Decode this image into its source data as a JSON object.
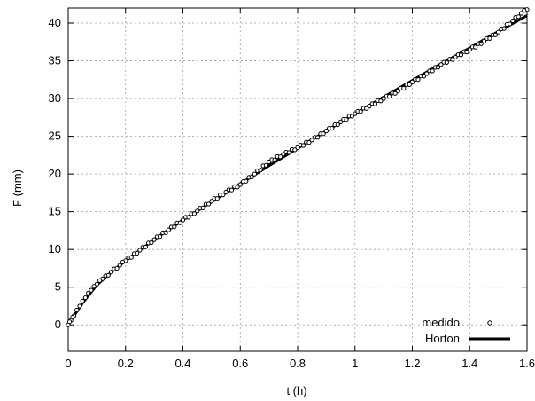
{
  "chart_data": {
    "type": "line",
    "title": "",
    "xlabel": "t (h)",
    "ylabel": "F (mm)",
    "xlim": [
      0,
      1.6
    ],
    "ylim": [
      -3.5,
      42
    ],
    "xticks": [
      0,
      0.2,
      0.4,
      0.6,
      0.8,
      1,
      1.2,
      1.4,
      1.6
    ],
    "xtick_labels": [
      "0",
      "0.2",
      "0.4",
      "0.6",
      "0.8",
      "1",
      "1.2",
      "1.4",
      "1.6"
    ],
    "yticks": [
      0,
      5,
      10,
      15,
      20,
      25,
      30,
      35,
      40
    ],
    "ytick_labels": [
      "0",
      "5",
      "10",
      "15",
      "20",
      "25",
      "30",
      "35",
      "40"
    ],
    "grid": true,
    "legend_position": "bottom-right",
    "series": [
      {
        "name": "medido",
        "style": "markers",
        "marker": "open-circle",
        "color": "#000000",
        "x": [
          0,
          0.01,
          0.02,
          0.04,
          0.06,
          0.08,
          0.1,
          0.12,
          0.15,
          0.18,
          0.2,
          0.25,
          0.3,
          0.35,
          0.4,
          0.45,
          0.5,
          0.55,
          0.6,
          0.65,
          0.7,
          0.75,
          0.8,
          0.85,
          0.9,
          0.95,
          1.0,
          1.05,
          1.1,
          1.15,
          1.2,
          1.25,
          1.3,
          1.35,
          1.4,
          1.45,
          1.5,
          1.55,
          1.58,
          1.6
        ],
        "y": [
          0,
          0.6,
          1.2,
          2.5,
          3.6,
          4.6,
          5.4,
          6.1,
          7.0,
          7.9,
          8.5,
          9.9,
          11.3,
          12.6,
          13.9,
          15.1,
          16.4,
          17.6,
          18.6,
          20.0,
          21.6,
          22.6,
          23.5,
          24.5,
          25.7,
          26.9,
          28.0,
          29.0,
          30.0,
          31.0,
          32.2,
          33.3,
          34.5,
          35.5,
          36.5,
          37.6,
          38.8,
          40.3,
          41.3,
          41.8
        ]
      },
      {
        "name": "Horton",
        "style": "line",
        "color": "#000000",
        "x": [
          0,
          0.02,
          0.05,
          0.1,
          0.15,
          0.2,
          0.3,
          0.4,
          0.5,
          0.6,
          0.7,
          0.8,
          0.9,
          1.0,
          1.1,
          1.2,
          1.3,
          1.4,
          1.5,
          1.6
        ],
        "y": [
          0,
          1.2,
          2.9,
          5.3,
          7.0,
          8.5,
          11.3,
          13.9,
          16.3,
          18.7,
          21.1,
          23.4,
          25.7,
          28.0,
          30.2,
          32.4,
          34.6,
          36.7,
          38.9,
          41.0
        ]
      }
    ]
  }
}
